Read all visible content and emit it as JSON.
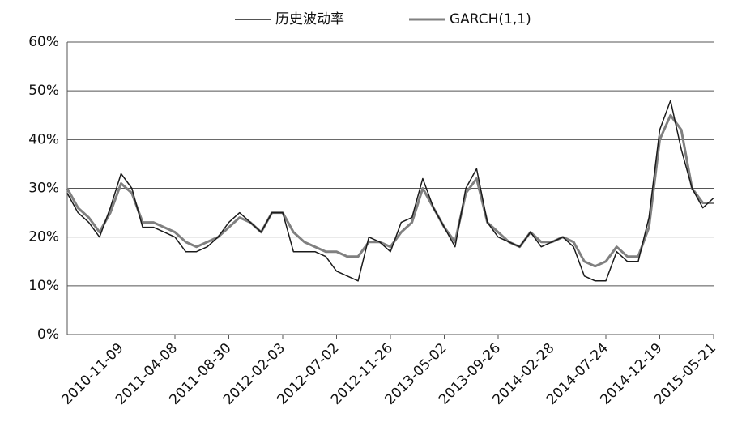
{
  "chart_data": {
    "type": "line",
    "categories": [
      null,
      null,
      null,
      null,
      null,
      "2010-11-09",
      null,
      null,
      null,
      null,
      "2011-04-08",
      null,
      null,
      null,
      null,
      "2011-08-30",
      null,
      null,
      null,
      null,
      "2012-02-03",
      null,
      null,
      null,
      null,
      "2012-07-02",
      null,
      null,
      null,
      null,
      "2012-11-26",
      null,
      null,
      null,
      null,
      "2013-05-02",
      null,
      null,
      null,
      null,
      "2013-09-26",
      null,
      null,
      null,
      null,
      "2014-02-28",
      null,
      null,
      null,
      null,
      "2014-07-24",
      null,
      null,
      null,
      null,
      "2014-12-19",
      null,
      null,
      null,
      null,
      "2015-05-21"
    ],
    "series": [
      {
        "name": "历史波动率",
        "color": "#1a1a1a",
        "width": 1.5,
        "values": [
          0.29,
          0.25,
          0.23,
          0.2,
          0.26,
          0.33,
          0.3,
          0.22,
          0.22,
          0.21,
          0.2,
          0.17,
          0.17,
          0.18,
          0.2,
          0.23,
          0.25,
          0.23,
          0.21,
          0.25,
          0.25,
          0.17,
          0.17,
          0.17,
          0.16,
          0.13,
          0.12,
          0.11,
          0.2,
          0.19,
          0.17,
          0.23,
          0.24,
          0.32,
          0.26,
          0.22,
          0.18,
          0.3,
          0.34,
          0.23,
          0.2,
          0.19,
          0.18,
          0.21,
          0.18,
          0.19,
          0.2,
          0.18,
          0.12,
          0.11,
          0.11,
          0.17,
          0.15,
          0.15,
          0.24,
          0.42,
          0.48,
          0.38,
          0.3,
          0.26,
          0.28
        ]
      },
      {
        "name": "GARCH(1,1)",
        "color": "#808080",
        "width": 3,
        "values": [
          0.3,
          0.26,
          0.24,
          0.21,
          0.25,
          0.31,
          0.29,
          0.23,
          0.23,
          0.22,
          0.21,
          0.19,
          0.18,
          0.19,
          0.2,
          0.22,
          0.24,
          0.23,
          0.21,
          0.25,
          0.25,
          0.21,
          0.19,
          0.18,
          0.17,
          0.17,
          0.16,
          0.16,
          0.19,
          0.19,
          0.18,
          0.21,
          0.23,
          0.3,
          0.26,
          0.22,
          0.19,
          0.29,
          0.32,
          0.23,
          0.21,
          0.19,
          0.18,
          0.21,
          0.19,
          0.19,
          0.2,
          0.19,
          0.15,
          0.14,
          0.15,
          0.18,
          0.16,
          0.16,
          0.22,
          0.4,
          0.45,
          0.42,
          0.3,
          0.27,
          0.27
        ]
      }
    ],
    "ylim": [
      0,
      0.6
    ],
    "yticks": [
      {
        "value": 0,
        "label": "0%"
      },
      {
        "value": 0.1,
        "label": "10%"
      },
      {
        "value": 0.2,
        "label": "20%"
      },
      {
        "value": 0.3,
        "label": "30%"
      },
      {
        "value": 0.4,
        "label": "40%"
      },
      {
        "value": 0.5,
        "label": "50%"
      },
      {
        "value": 0.6,
        "label": "60%"
      }
    ],
    "grid": true,
    "legend": "top"
  }
}
